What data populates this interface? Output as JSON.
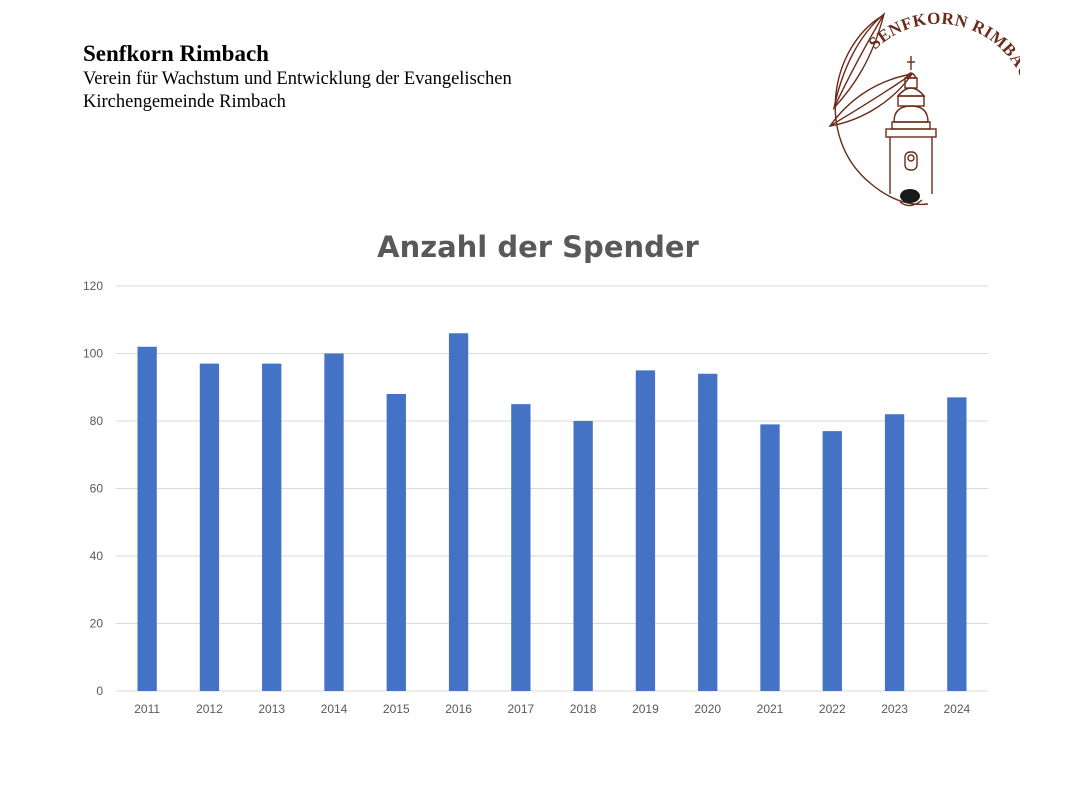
{
  "header": {
    "org_name": "Senfkorn Rimbach",
    "subtitle_line1": "Verein für Wachstum und Entwicklung der Evangelischen",
    "subtitle_line2": "Kirchengemeinde Rimbach"
  },
  "logo": {
    "text": "SENFKORN RIMBACH e.V.",
    "color": "#6b2b1a"
  },
  "chart_data": {
    "type": "bar",
    "title": "Anzahl der Spender",
    "xlabel": "",
    "ylabel": "",
    "categories": [
      "2011",
      "2012",
      "2013",
      "2014",
      "2015",
      "2016",
      "2017",
      "2018",
      "2019",
      "2020",
      "2021",
      "2022",
      "2023",
      "2024"
    ],
    "values": [
      102,
      97,
      97,
      100,
      88,
      106,
      85,
      80,
      95,
      94,
      79,
      77,
      82,
      87
    ],
    "ylim": [
      0,
      120
    ],
    "yticks": [
      0,
      20,
      40,
      60,
      80,
      100,
      120
    ],
    "grid": true,
    "legend": "none",
    "bar_color": "#4472c4"
  }
}
